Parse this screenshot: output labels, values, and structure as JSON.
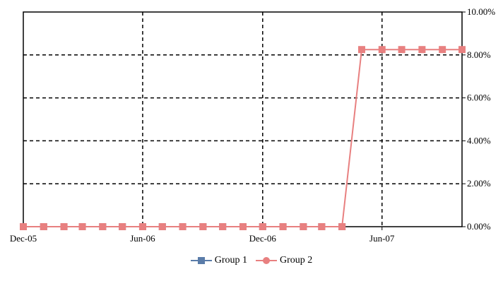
{
  "chart_data": {
    "type": "line",
    "x_axis": {
      "type": "date",
      "min": "2005-12-01",
      "max": "2007-10-01",
      "tick_labels": [
        {
          "date": "2005-12-01",
          "label": "Dec-05"
        },
        {
          "date": "2006-06-01",
          "label": "Jun-06"
        },
        {
          "date": "2006-12-01",
          "label": "Dec-06"
        },
        {
          "date": "2007-06-01",
          "label": "Jun-07"
        }
      ]
    },
    "y_axis": {
      "position": "right",
      "min": 0,
      "max": 0.1,
      "ticks": [
        0,
        0.02,
        0.04,
        0.06,
        0.08,
        0.1
      ],
      "tick_labels": [
        "0.00%",
        "2.00%",
        "4.00%",
        "6.00%",
        "8.00%",
        "10.00%"
      ]
    },
    "grid": true,
    "legend_position": "bottom",
    "series": [
      {
        "name": "Group 1",
        "color": "#5a7ca9",
        "marker": "square",
        "points": [
          [
            "2005-12-01",
            0
          ],
          [
            "2006-01-01",
            0
          ],
          [
            "2006-02-01",
            0
          ],
          [
            "2006-03-01",
            0
          ],
          [
            "2006-04-01",
            0
          ],
          [
            "2006-05-01",
            0
          ],
          [
            "2006-06-01",
            0
          ],
          [
            "2006-07-01",
            0
          ],
          [
            "2006-08-01",
            0
          ],
          [
            "2006-09-01",
            0
          ],
          [
            "2006-10-01",
            0
          ],
          [
            "2006-11-01",
            0
          ],
          [
            "2006-12-01",
            0
          ],
          [
            "2007-01-01",
            0
          ],
          [
            "2007-02-01",
            0
          ],
          [
            "2007-03-01",
            0
          ],
          [
            "2007-04-01",
            0
          ]
        ]
      },
      {
        "name": "Group 2",
        "color": "#e88080",
        "marker": "square",
        "points": [
          [
            "2005-12-01",
            0
          ],
          [
            "2006-01-01",
            0
          ],
          [
            "2006-02-01",
            0
          ],
          [
            "2006-03-01",
            0
          ],
          [
            "2006-04-01",
            0
          ],
          [
            "2006-05-01",
            0
          ],
          [
            "2006-06-01",
            0
          ],
          [
            "2006-07-01",
            0
          ],
          [
            "2006-08-01",
            0
          ],
          [
            "2006-09-01",
            0
          ],
          [
            "2006-10-01",
            0
          ],
          [
            "2006-11-01",
            0
          ],
          [
            "2006-12-01",
            0
          ],
          [
            "2007-01-01",
            0
          ],
          [
            "2007-02-01",
            0
          ],
          [
            "2007-03-01",
            0
          ],
          [
            "2007-04-01",
            0
          ],
          [
            "2007-05-01",
            0.0825
          ],
          [
            "2007-06-01",
            0.0825
          ],
          [
            "2007-07-01",
            0.0825
          ],
          [
            "2007-08-01",
            0.0825
          ],
          [
            "2007-09-01",
            0.0825
          ],
          [
            "2007-10-01",
            0.0825
          ]
        ]
      }
    ]
  }
}
